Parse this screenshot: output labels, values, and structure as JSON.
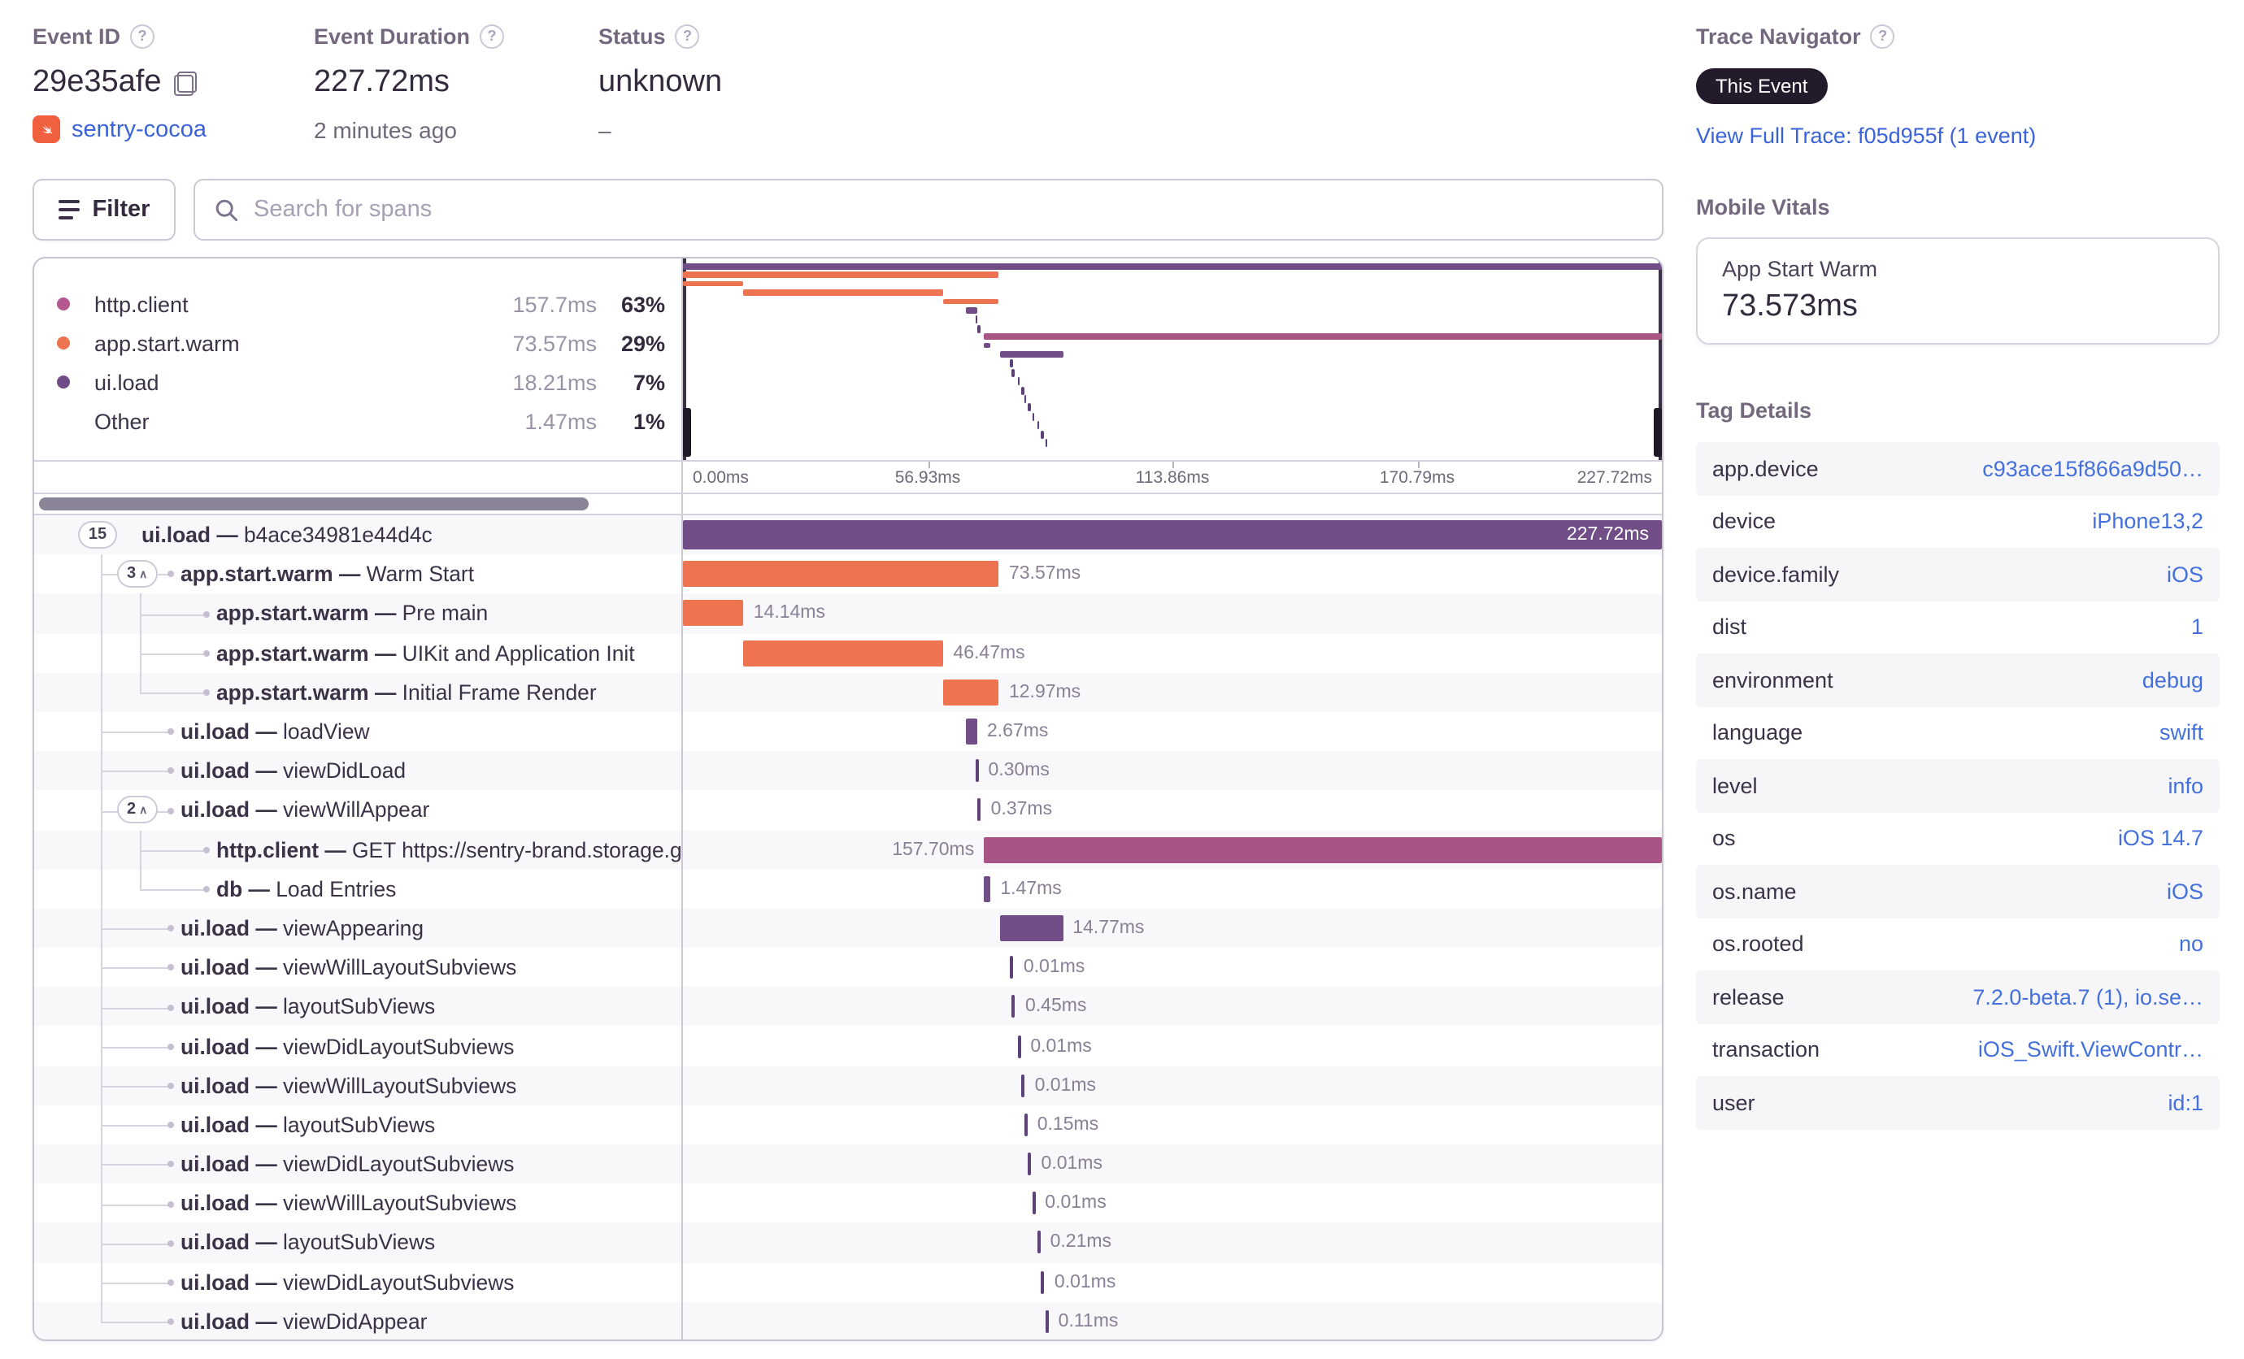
{
  "header": {
    "event_id": {
      "label": "Event ID",
      "value": "29e35afe",
      "project": "sentry-cocoa"
    },
    "duration": {
      "label": "Event Duration",
      "value": "227.72ms",
      "ago": "2 minutes ago"
    },
    "status": {
      "label": "Status",
      "value": "unknown",
      "sub": "–"
    }
  },
  "trace": {
    "label": "Trace Navigator",
    "badge": "This Event",
    "link": "View Full Trace: f05d955f (1 event)"
  },
  "vitals": {
    "label": "Mobile Vitals",
    "card_title": "App Start Warm",
    "card_value": "73.573ms"
  },
  "tags": {
    "label": "Tag Details",
    "rows": [
      {
        "key": "app.device",
        "value": "c93ace15f866a9d50…"
      },
      {
        "key": "device",
        "value": "iPhone13,2"
      },
      {
        "key": "device.family",
        "value": "iOS"
      },
      {
        "key": "dist",
        "value": "1"
      },
      {
        "key": "environment",
        "value": "debug"
      },
      {
        "key": "language",
        "value": "swift"
      },
      {
        "key": "level",
        "value": "info"
      },
      {
        "key": "os",
        "value": "iOS 14.7"
      },
      {
        "key": "os.name",
        "value": "iOS"
      },
      {
        "key": "os.rooted",
        "value": "no"
      },
      {
        "key": "release",
        "value": "7.2.0-beta.7 (1), io.se…"
      },
      {
        "key": "transaction",
        "value": "iOS_Swift.ViewContr…"
      },
      {
        "key": "user",
        "value": "id:1"
      }
    ]
  },
  "toolbar": {
    "filter_label": "Filter",
    "search_placeholder": "Search for spans"
  },
  "legend": {
    "items": [
      {
        "name": "http.client",
        "duration": "157.7ms",
        "percent": "63%",
        "color": "#b5588f"
      },
      {
        "name": "app.start.warm",
        "duration": "73.57ms",
        "percent": "29%",
        "color": "#ee7350"
      },
      {
        "name": "ui.load",
        "duration": "18.21ms",
        "percent": "7%",
        "color": "#6f4c87"
      },
      {
        "name": "Other",
        "duration": "1.47ms",
        "percent": "1%",
        "color": ""
      }
    ]
  },
  "axis": {
    "ticks": [
      "0.00ms",
      "56.93ms",
      "113.86ms",
      "170.79ms",
      "227.72ms"
    ]
  },
  "waterfall": {
    "total_ms": 227.72,
    "colors": {
      "ui.load": "#714e88",
      "app.start.warm": "#ee7350",
      "http.client": "#a85586",
      "db": "#714e88"
    },
    "tick_color": "#5e4179",
    "spans": [
      {
        "pill": "15",
        "chevron": false,
        "op": "ui.load",
        "desc": "b4ace34981e44d4c",
        "depth": 0,
        "start": 0,
        "dur": 227.72,
        "label": "227.72ms",
        "label_pos": "inside"
      },
      {
        "pill": "3",
        "chevron": true,
        "op": "app.start.warm",
        "desc": "Warm Start",
        "depth": 1,
        "start": 0,
        "dur": 73.57,
        "label": "73.57ms",
        "label_pos": "right"
      },
      {
        "op": "app.start.warm",
        "desc": "Pre main",
        "depth": 2,
        "start": 0,
        "dur": 14.14,
        "label": "14.14ms",
        "label_pos": "right"
      },
      {
        "op": "app.start.warm",
        "desc": "UIKit and Application Init",
        "depth": 2,
        "start": 14.14,
        "dur": 46.47,
        "label": "46.47ms",
        "label_pos": "right"
      },
      {
        "op": "app.start.warm",
        "desc": "Initial Frame Render",
        "depth": 2,
        "start": 60.6,
        "dur": 12.97,
        "label": "12.97ms",
        "label_pos": "right"
      },
      {
        "op": "ui.load",
        "desc": "loadView",
        "depth": 1,
        "start": 65.8,
        "dur": 2.67,
        "label": "2.67ms",
        "label_pos": "right"
      },
      {
        "op": "ui.load",
        "desc": "viewDidLoad",
        "depth": 1,
        "start": 68.0,
        "dur": 0.3,
        "label": "0.30ms",
        "label_pos": "right"
      },
      {
        "pill": "2",
        "chevron": true,
        "op": "ui.load",
        "desc": "viewWillAppear",
        "depth": 1,
        "start": 68.6,
        "dur": 0.37,
        "label": "0.37ms",
        "label_pos": "right"
      },
      {
        "op": "http.client",
        "desc": "GET https://sentry-brand.storage.googleapis.com/",
        "depth": 2,
        "start": 70.02,
        "dur": 157.7,
        "label": "157.70ms",
        "label_pos": "left"
      },
      {
        "op": "db",
        "desc": "Load Entries",
        "depth": 2,
        "start": 70.1,
        "dur": 1.47,
        "label": "1.47ms",
        "label_pos": "right"
      },
      {
        "op": "ui.load",
        "desc": "viewAppearing",
        "depth": 1,
        "start": 73.6,
        "dur": 14.77,
        "label": "14.77ms",
        "label_pos": "right"
      },
      {
        "op": "ui.load",
        "desc": "viewWillLayoutSubviews",
        "depth": 1,
        "start": 76.2,
        "dur": 0.01,
        "label": "0.01ms",
        "label_pos": "right"
      },
      {
        "op": "ui.load",
        "desc": "layoutSubViews",
        "depth": 1,
        "start": 76.6,
        "dur": 0.45,
        "label": "0.45ms",
        "label_pos": "right"
      },
      {
        "op": "ui.load",
        "desc": "viewDidLayoutSubviews",
        "depth": 1,
        "start": 77.8,
        "dur": 0.01,
        "label": "0.01ms",
        "label_pos": "right"
      },
      {
        "op": "ui.load",
        "desc": "viewWillLayoutSubviews",
        "depth": 1,
        "start": 78.8,
        "dur": 0.01,
        "label": "0.01ms",
        "label_pos": "right"
      },
      {
        "op": "ui.load",
        "desc": "layoutSubViews",
        "depth": 1,
        "start": 79.4,
        "dur": 0.15,
        "label": "0.15ms",
        "label_pos": "right"
      },
      {
        "op": "ui.load",
        "desc": "viewDidLayoutSubviews",
        "depth": 1,
        "start": 80.3,
        "dur": 0.01,
        "label": "0.01ms",
        "label_pos": "right"
      },
      {
        "op": "ui.load",
        "desc": "viewWillLayoutSubviews",
        "depth": 1,
        "start": 81.2,
        "dur": 0.01,
        "label": "0.01ms",
        "label_pos": "right"
      },
      {
        "op": "ui.load",
        "desc": "layoutSubViews",
        "depth": 1,
        "start": 82.4,
        "dur": 0.21,
        "label": "0.21ms",
        "label_pos": "right"
      },
      {
        "op": "ui.load",
        "desc": "viewDidLayoutSubviews",
        "depth": 1,
        "start": 83.4,
        "dur": 0.01,
        "label": "0.01ms",
        "label_pos": "right"
      },
      {
        "op": "ui.load",
        "desc": "viewDidAppear",
        "depth": 1,
        "start": 84.3,
        "dur": 0.11,
        "label": "0.11ms",
        "label_pos": "right"
      }
    ]
  }
}
